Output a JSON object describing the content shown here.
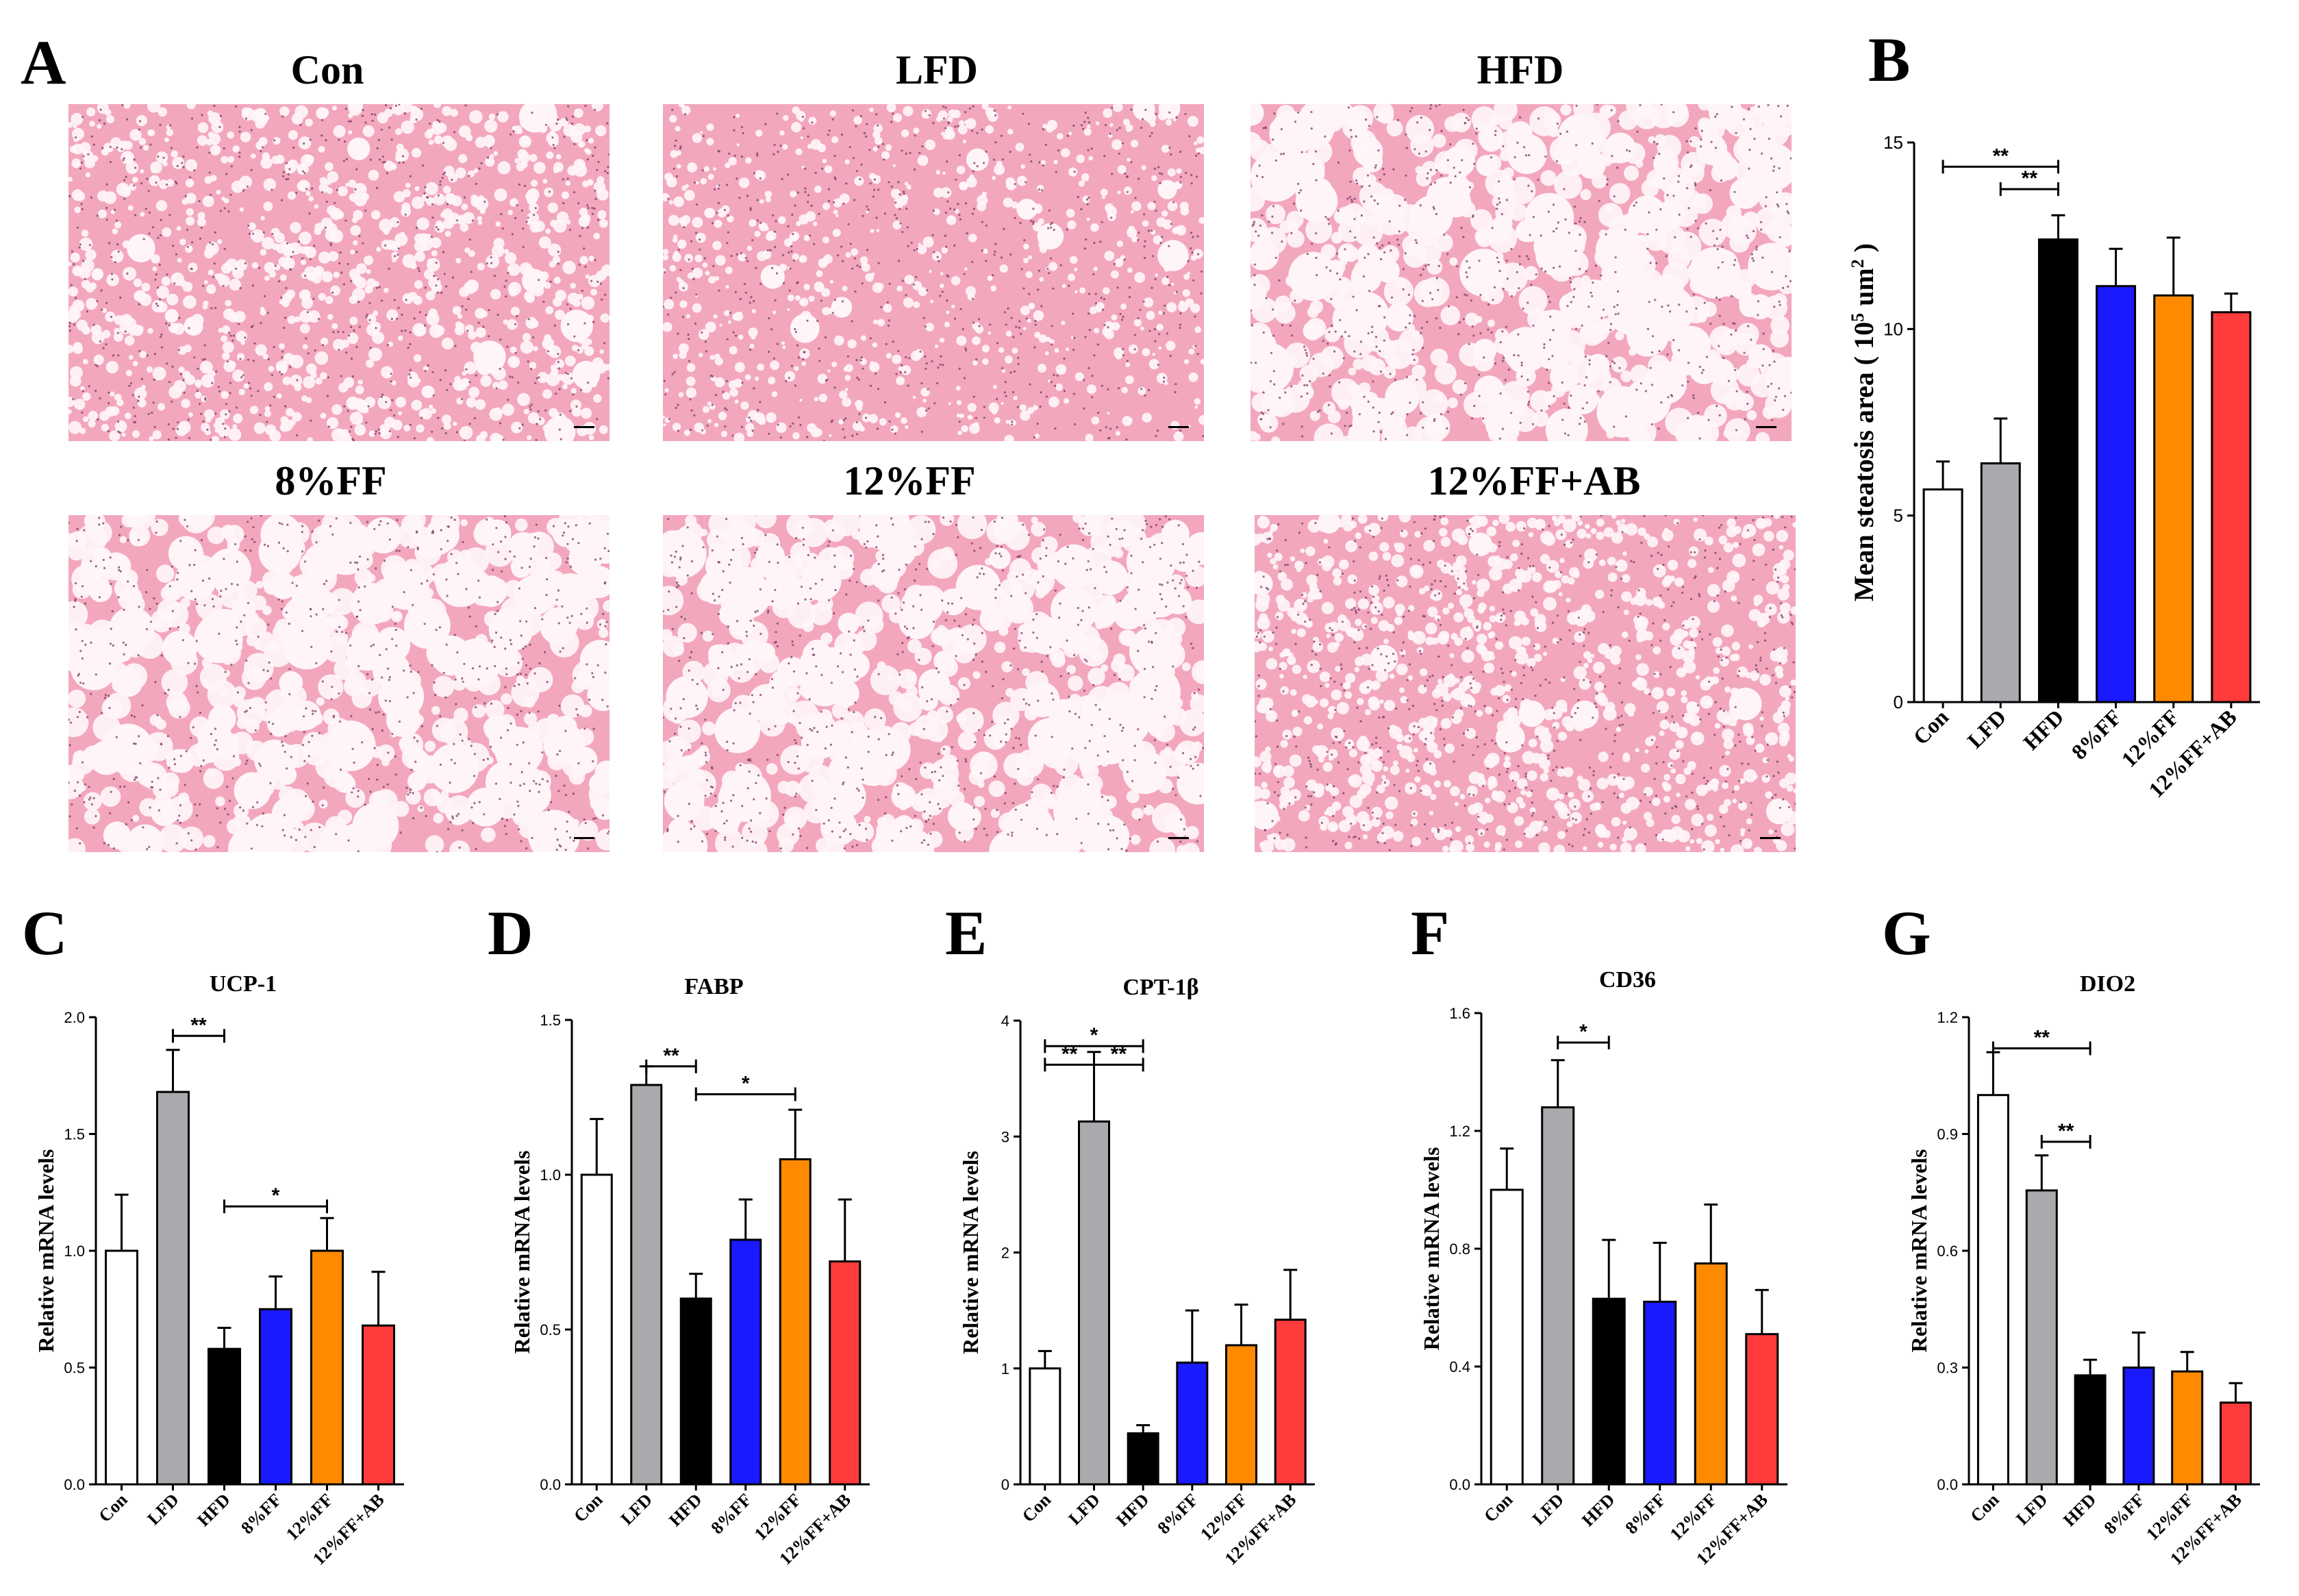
{
  "histology": {
    "panel_label": "A",
    "images": [
      {
        "label": "Con",
        "texture": "dense"
      },
      {
        "label": "LFD",
        "texture": "denser"
      },
      {
        "label": "HFD",
        "texture": "vacuolated"
      },
      {
        "label": "8%FF",
        "texture": "vacuolated"
      },
      {
        "label": "12%FF",
        "texture": "vacuolated"
      },
      {
        "label": "12%FF+AB",
        "texture": "dense"
      }
    ],
    "tissue_color": "#f2a7bd",
    "vacuole_color": "#fff5f8",
    "nucleus_color": "#7a3a6a"
  },
  "bar_colors": [
    "#ffffff",
    "#a9a9ae",
    "#000000",
    "#1a1aff",
    "#ff8a00",
    "#ff3b3b"
  ],
  "chart_data": [
    {
      "panel": "B",
      "type": "bar",
      "title": "",
      "categories": [
        "Con",
        "LFD",
        "HFD",
        "8%FF",
        "12%FF",
        "12%FF+AB"
      ],
      "values": [
        5.7,
        6.4,
        12.4,
        11.15,
        10.9,
        10.45
      ],
      "errors": [
        0.75,
        1.2,
        0.65,
        1.0,
        1.55,
        0.5
      ],
      "ylim": [
        0,
        15
      ],
      "yticks": [
        0,
        5,
        10,
        15
      ],
      "ylabel": "Mean steatosis area",
      "ylabel_unit_pre": "( 10",
      "ylabel_unit_sup": "5",
      "ylabel_unit_post": " um",
      "ylabel_unit_sup2": "2",
      "ylabel_unit_close": " )",
      "significance": [
        {
          "from": 0,
          "to": 2,
          "y": 14.35,
          "text": "**"
        },
        {
          "from": 1,
          "to": 2,
          "y": 13.75,
          "text": "**"
        }
      ]
    },
    {
      "panel": "C",
      "type": "bar",
      "title": "UCP-1",
      "categories": [
        "Con",
        "LFD",
        "HFD",
        "8%FF",
        "12%FF",
        "12%FF+AB"
      ],
      "values": [
        1.0,
        1.68,
        0.58,
        0.75,
        1.0,
        0.68
      ],
      "errors": [
        0.24,
        0.18,
        0.09,
        0.14,
        0.14,
        0.23
      ],
      "ylim": [
        0,
        2.0
      ],
      "yticks": [
        0.0,
        0.5,
        1.0,
        1.5,
        2.0
      ],
      "ytick_labels": [
        "0.0",
        "0.5",
        "1.0",
        "1.5",
        "2.0"
      ],
      "ylabel": "Relative mRNA levels",
      "significance": [
        {
          "from": 1,
          "to": 2,
          "y": 1.92,
          "text": "**"
        },
        {
          "from": 2,
          "to": 4,
          "y": 1.19,
          "text": "*"
        }
      ]
    },
    {
      "panel": "D",
      "type": "bar",
      "title": "FABP",
      "categories": [
        "Con",
        "LFD",
        "HFD",
        "8%FF",
        "12%FF",
        "12%FF+AB"
      ],
      "values": [
        1.0,
        1.29,
        0.6,
        0.79,
        1.05,
        0.72
      ],
      "errors": [
        0.18,
        0.06,
        0.08,
        0.13,
        0.16,
        0.2
      ],
      "ylim": [
        0,
        1.5
      ],
      "yticks": [
        0.0,
        0.5,
        1.0,
        1.5
      ],
      "ytick_labels": [
        "0.0",
        "0.5",
        "1.0",
        "1.5"
      ],
      "ylabel": "Relative mRNA levels",
      "significance": [
        {
          "from": 1,
          "to": 2,
          "y": 1.35,
          "text": "**"
        },
        {
          "from": 2,
          "to": 4,
          "y": 1.26,
          "text": "*"
        }
      ]
    },
    {
      "panel": "E",
      "type": "bar",
      "title": "CPT-1β",
      "categories": [
        "Con",
        "LFD",
        "HFD",
        "8%FF",
        "12%FF",
        "12%FF+AB"
      ],
      "values": [
        1.0,
        3.13,
        0.44,
        1.05,
        1.2,
        1.42
      ],
      "errors": [
        0.15,
        0.6,
        0.07,
        0.45,
        0.35,
        0.43
      ],
      "ylim": [
        0,
        4
      ],
      "yticks": [
        0,
        1,
        2,
        3,
        4
      ],
      "ytick_labels": [
        "0",
        "1",
        "2",
        "3",
        "4"
      ],
      "ylabel": "Relative mRNA levels",
      "significance": [
        {
          "from": 0,
          "to": 2,
          "y": 3.78,
          "text": "*"
        },
        {
          "from": 0,
          "to": 1,
          "y": 3.62,
          "text": "**"
        },
        {
          "from": 1,
          "to": 2,
          "y": 3.62,
          "text": "**"
        }
      ]
    },
    {
      "panel": "F",
      "type": "bar",
      "title": "CD36",
      "categories": [
        "Con",
        "LFD",
        "HFD",
        "8%FF",
        "12%FF",
        "12%FF+AB"
      ],
      "values": [
        1.0,
        1.28,
        0.63,
        0.62,
        0.75,
        0.51
      ],
      "errors": [
        0.14,
        0.16,
        0.2,
        0.2,
        0.2,
        0.15
      ],
      "ylim": [
        0,
        1.6
      ],
      "yticks": [
        0.0,
        0.4,
        0.8,
        1.2,
        1.6
      ],
      "ytick_labels": [
        "0.0",
        "0.4",
        "0.8",
        "1.2",
        "1.6"
      ],
      "ylabel": "Relative mRNA levels",
      "significance": [
        {
          "from": 1,
          "to": 2,
          "y": 1.5,
          "text": "*"
        }
      ]
    },
    {
      "panel": "G",
      "type": "bar",
      "title": "DIO2",
      "categories": [
        "Con",
        "LFD",
        "HFD",
        "8%FF",
        "12%FF",
        "12%FF+AB"
      ],
      "values": [
        1.0,
        0.755,
        0.28,
        0.3,
        0.29,
        0.21
      ],
      "errors": [
        0.11,
        0.09,
        0.04,
        0.09,
        0.05,
        0.05
      ],
      "ylim": [
        0,
        1.2
      ],
      "yticks": [
        0.0,
        0.3,
        0.6,
        0.9,
        1.2
      ],
      "ytick_labels": [
        "0.0",
        "0.3",
        "0.6",
        "0.9",
        "1.2"
      ],
      "ylabel": "Relative mRNA levels",
      "significance": [
        {
          "from": 0,
          "to": 2,
          "y": 1.12,
          "text": "**"
        },
        {
          "from": 1,
          "to": 2,
          "y": 0.88,
          "text": "**"
        }
      ]
    }
  ]
}
